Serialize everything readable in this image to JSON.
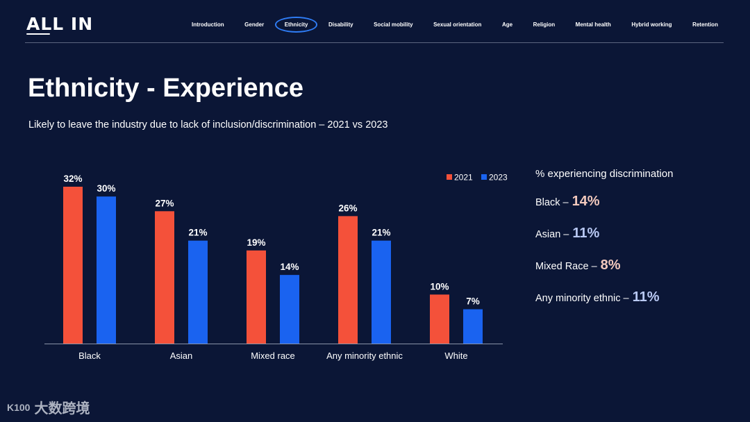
{
  "brand": {
    "logo": "ALL IN"
  },
  "nav": {
    "items": [
      "Introduction",
      "Gender",
      "Ethnicity",
      "Disability",
      "Social mobility",
      "Sexual orientation",
      "Age",
      "Religion",
      "Mental health",
      "Hybrid working",
      "Retention"
    ],
    "active": "Ethnicity"
  },
  "page": {
    "title": "Ethnicity - Experience",
    "subtitle": "Likely to leave the industry due to lack of inclusion/discrimination – 2021 vs 2023"
  },
  "chart_data": {
    "type": "bar",
    "title": "Likely to leave the industry due to lack of inclusion/discrimination – 2021 vs 2023",
    "categories": [
      "Black",
      "Asian",
      "Mixed race",
      "Any minority ethnic",
      "White"
    ],
    "series": [
      {
        "name": "2021",
        "color": "#f4513a",
        "values": [
          32,
          27,
          19,
          26,
          10
        ],
        "labels": [
          "32%",
          "27%",
          "19%",
          "26%",
          "10%"
        ]
      },
      {
        "name": "2023",
        "color": "#1a63f0",
        "values": [
          30,
          21,
          14,
          21,
          7
        ],
        "labels": [
          "30%",
          "21%",
          "14%",
          "21%",
          "7%"
        ]
      }
    ],
    "ylim": [
      0,
      32
    ],
    "xlabel": "",
    "ylabel": "",
    "legend_position": "top-right",
    "grid": false
  },
  "side_panel": {
    "title": "% experiencing discrimination",
    "items": [
      {
        "label": "Black –",
        "value": "14%",
        "color": "#f3c9bd"
      },
      {
        "label": "Asian –",
        "value": "11%",
        "color": "#b9c9f4"
      },
      {
        "label": "Mixed Race –",
        "value": "8%",
        "color": "#f3c9bd"
      },
      {
        "label": "Any minority ethnic –",
        "value": "11%",
        "color": "#b9c9f4"
      }
    ]
  },
  "watermark": {
    "text": "大数跨境",
    "mark": "K100"
  }
}
